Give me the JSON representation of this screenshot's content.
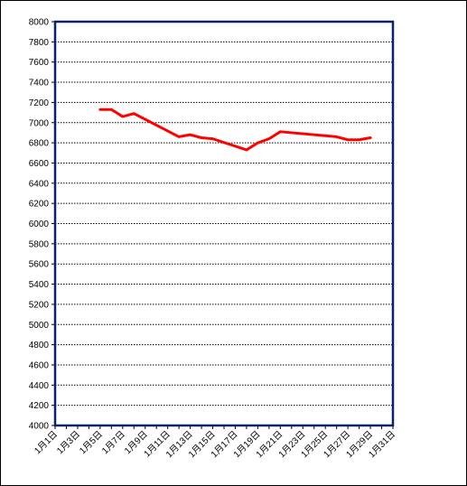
{
  "chart_data": {
    "type": "line",
    "title": "",
    "xlabel": "",
    "ylabel": "",
    "ylim": [
      4000,
      8000
    ],
    "ytick_step": 200,
    "grid": "horizontal-dashed",
    "legend": "none",
    "x_categories": [
      "1月1日",
      "1月2日",
      "1月3日",
      "1月4日",
      "1月5日",
      "1月6日",
      "1月7日",
      "1月8日",
      "1月9日",
      "1月10日",
      "1月11日",
      "1月12日",
      "1月13日",
      "1月14日",
      "1月15日",
      "1月16日",
      "1月17日",
      "1月18日",
      "1月19日",
      "1月20日",
      "1月21日",
      "1月22日",
      "1月23日",
      "1月24日",
      "1月25日",
      "1月26日",
      "1月27日",
      "1月28日",
      "1月29日",
      "1月30日",
      "1月31日"
    ],
    "x_tick_labels_shown": [
      "1月1日",
      "1月3日",
      "1月5日",
      "1月7日",
      "1月9日",
      "1月11日",
      "1月13日",
      "1月15日",
      "1月17日",
      "1月19日",
      "1月21日",
      "1月23日",
      "1月25日",
      "1月27日",
      "1月29日",
      "1月31日"
    ],
    "series": [
      {
        "color": "#ff0000",
        "points": [
          {
            "x": "1月5日",
            "y": 7130
          },
          {
            "x": "1月6日",
            "y": 7130
          },
          {
            "x": "1月7日",
            "y": 7060
          },
          {
            "x": "1月8日",
            "y": 7090
          },
          {
            "x": "1月12日",
            "y": 6860
          },
          {
            "x": "1月13日",
            "y": 6880
          },
          {
            "x": "1月14日",
            "y": 6850
          },
          {
            "x": "1月15日",
            "y": 6840
          },
          {
            "x": "1月18日",
            "y": 6730
          },
          {
            "x": "1月19日",
            "y": 6800
          },
          {
            "x": "1月20日",
            "y": 6840
          },
          {
            "x": "1月21日",
            "y": 6910
          },
          {
            "x": "1月26日",
            "y": 6860
          },
          {
            "x": "1月27日",
            "y": 6830
          },
          {
            "x": "1月28日",
            "y": 6830
          },
          {
            "x": "1月29日",
            "y": 6850
          }
        ]
      }
    ]
  }
}
